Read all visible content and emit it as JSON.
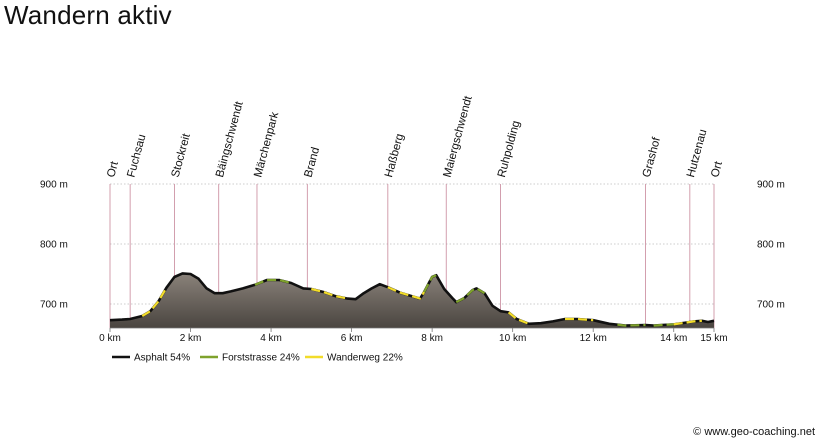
{
  "title": "Wandern aktiv",
  "copyright": "© www.geo-coaching.net",
  "chart_data": {
    "type": "area",
    "title": "Wandern aktiv",
    "xlabel": "",
    "ylabel": "",
    "xlim": [
      0,
      15
    ],
    "ylim": [
      660,
      900
    ],
    "x_unit": "km",
    "y_unit": "m",
    "grid": true,
    "legend_position": "bottom-left",
    "x_ticks": [
      {
        "value": 0,
        "label": "0 km"
      },
      {
        "value": 2,
        "label": "2 km"
      },
      {
        "value": 4,
        "label": "4 km"
      },
      {
        "value": 6,
        "label": "6 km"
      },
      {
        "value": 8,
        "label": "8 km"
      },
      {
        "value": 10,
        "label": "10 km"
      },
      {
        "value": 12,
        "label": "12 km"
      },
      {
        "value": 14,
        "label": "14 km"
      },
      {
        "value": 15,
        "label": "15 km"
      }
    ],
    "y_ticks": [
      {
        "value": 700,
        "label": "700 m"
      },
      {
        "value": 800,
        "label": "800 m"
      },
      {
        "value": 900,
        "label": "900 m"
      }
    ],
    "places": [
      {
        "name": "Ort",
        "km": 0.0
      },
      {
        "name": "Fuchsau",
        "km": 0.5
      },
      {
        "name": "Stockreit",
        "km": 1.6
      },
      {
        "name": "Bäingschwendt",
        "km": 2.7
      },
      {
        "name": "Märchenpark",
        "km": 3.65
      },
      {
        "name": "Brand",
        "km": 4.9
      },
      {
        "name": "Haßberg",
        "km": 6.9
      },
      {
        "name": "Maiergschwendt",
        "km": 8.35
      },
      {
        "name": "Ruhpolding",
        "km": 9.7
      },
      {
        "name": "Grashof",
        "km": 13.3
      },
      {
        "name": "Hutzenau",
        "km": 14.4
      },
      {
        "name": "Ort",
        "km": 15.0
      }
    ],
    "profile": [
      [
        0.0,
        673
      ],
      [
        0.3,
        674
      ],
      [
        0.5,
        675
      ],
      [
        0.8,
        680
      ],
      [
        1.0,
        688
      ],
      [
        1.2,
        704
      ],
      [
        1.4,
        727
      ],
      [
        1.6,
        745
      ],
      [
        1.8,
        751
      ],
      [
        2.0,
        750
      ],
      [
        2.2,
        742
      ],
      [
        2.4,
        726
      ],
      [
        2.6,
        718
      ],
      [
        2.8,
        718
      ],
      [
        3.0,
        721
      ],
      [
        3.3,
        726
      ],
      [
        3.6,
        732
      ],
      [
        3.9,
        740
      ],
      [
        4.2,
        740
      ],
      [
        4.5,
        735
      ],
      [
        4.8,
        726
      ],
      [
        5.0,
        725
      ],
      [
        5.3,
        720
      ],
      [
        5.6,
        713
      ],
      [
        5.9,
        709
      ],
      [
        6.1,
        708
      ],
      [
        6.3,
        718
      ],
      [
        6.5,
        726
      ],
      [
        6.7,
        733
      ],
      [
        6.9,
        728
      ],
      [
        7.2,
        719
      ],
      [
        7.5,
        713
      ],
      [
        7.7,
        709
      ],
      [
        7.8,
        720
      ],
      [
        8.0,
        745
      ],
      [
        8.1,
        748
      ],
      [
        8.3,
        725
      ],
      [
        8.5,
        710
      ],
      [
        8.6,
        703
      ],
      [
        8.8,
        710
      ],
      [
        9.0,
        723
      ],
      [
        9.1,
        726
      ],
      [
        9.3,
        718
      ],
      [
        9.5,
        697
      ],
      [
        9.7,
        688
      ],
      [
        9.9,
        686
      ],
      [
        10.1,
        675
      ],
      [
        10.4,
        667
      ],
      [
        10.7,
        668
      ],
      [
        11.0,
        671
      ],
      [
        11.3,
        675
      ],
      [
        11.6,
        675
      ],
      [
        12.0,
        673
      ],
      [
        12.4,
        667
      ],
      [
        12.8,
        664
      ],
      [
        13.3,
        665
      ],
      [
        13.5,
        664
      ],
      [
        13.7,
        665
      ],
      [
        14.0,
        666
      ],
      [
        14.3,
        669
      ],
      [
        14.5,
        671
      ],
      [
        14.7,
        672
      ],
      [
        14.85,
        670
      ],
      [
        15.0,
        672
      ]
    ],
    "surfaces": [
      {
        "name": "Asphalt",
        "share": "54%",
        "color": "#111111"
      },
      {
        "name": "Forststrasse",
        "share": "24%",
        "color": "#7fa22c"
      },
      {
        "name": "Wanderweg",
        "share": "22%",
        "color": "#f2dc2a"
      }
    ],
    "surface_segments": [
      {
        "surface": "Wanderweg",
        "from": 0.8,
        "to": 1.4
      },
      {
        "surface": "Forststrasse",
        "from": 3.6,
        "to": 4.5
      },
      {
        "surface": "Wanderweg",
        "from": 5.0,
        "to": 5.9
      },
      {
        "surface": "Wanderweg",
        "from": 6.9,
        "to": 7.8
      },
      {
        "surface": "Forststrasse",
        "from": 7.8,
        "to": 8.1
      },
      {
        "surface": "Forststrasse",
        "from": 8.6,
        "to": 9.3
      },
      {
        "surface": "Wanderweg",
        "from": 9.9,
        "to": 10.4
      },
      {
        "surface": "Wanderweg",
        "from": 11.3,
        "to": 12.0
      },
      {
        "surface": "Forststrasse",
        "from": 12.6,
        "to": 13.3
      },
      {
        "surface": "Forststrasse",
        "from": 13.5,
        "to": 14.0
      },
      {
        "surface": "Wanderweg",
        "from": 14.0,
        "to": 14.7
      }
    ],
    "colors": {
      "fill_top": "#8a827a",
      "fill_bottom": "#4a4540",
      "place_line": "#c8879a",
      "grid": "#9a9a9a",
      "axis": "#777777"
    }
  }
}
